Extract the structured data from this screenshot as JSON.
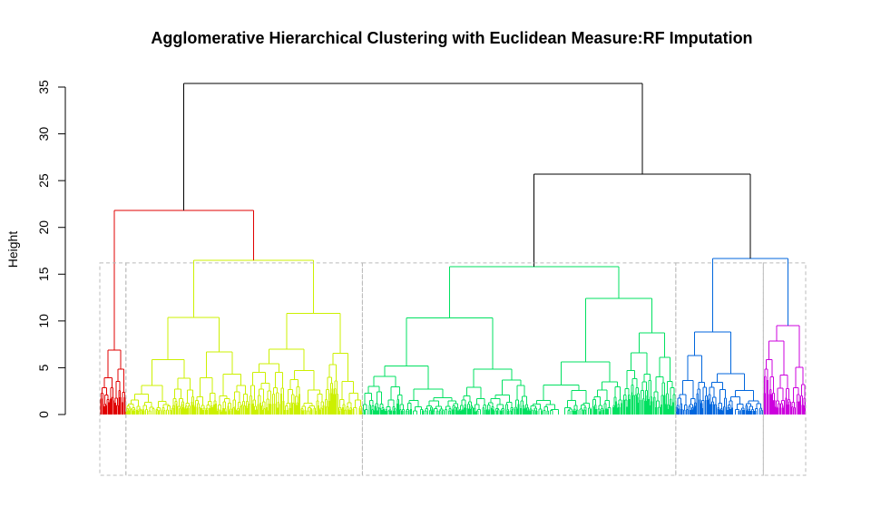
{
  "chart_data": {
    "type": "dendrogram",
    "title": "Agglomerative Hierarchical Clustering with Euclidean Measure:RF Imputation",
    "xlabel": "",
    "ylabel": "Height",
    "ylim": [
      0,
      35
    ],
    "yticks": [
      0,
      5,
      10,
      15,
      20,
      25,
      30,
      35
    ],
    "cut_height": 16.2,
    "root_height": 35.4,
    "grid": false,
    "clusters": [
      {
        "name": "1",
        "color": "#e00000",
        "share": 0.037,
        "height": 6.9
      },
      {
        "name": "2",
        "color": "#ccf000",
        "share": 0.335,
        "height": 16.5
      },
      {
        "name": "3",
        "color": "#00e060",
        "share": 0.444,
        "height": 15.8
      },
      {
        "name": "4",
        "color": "#0066dd",
        "share": 0.124,
        "height": 8.8
      },
      {
        "name": "5",
        "color": "#cc00dd",
        "share": 0.06,
        "height": 9.5
      }
    ],
    "merges": [
      {
        "left": "1",
        "right": "2",
        "height": 21.8,
        "color": "#e00000"
      },
      {
        "left": "4",
        "right": "5",
        "height": 16.7,
        "color": "#0066dd"
      },
      {
        "left": "3",
        "right": "4+5",
        "height": 25.7,
        "color": "#000000"
      },
      {
        "left": "1+2",
        "right": "3+4+5",
        "height": 35.4,
        "color": "#000000"
      }
    ],
    "rect_color": "#bbbbbb"
  }
}
